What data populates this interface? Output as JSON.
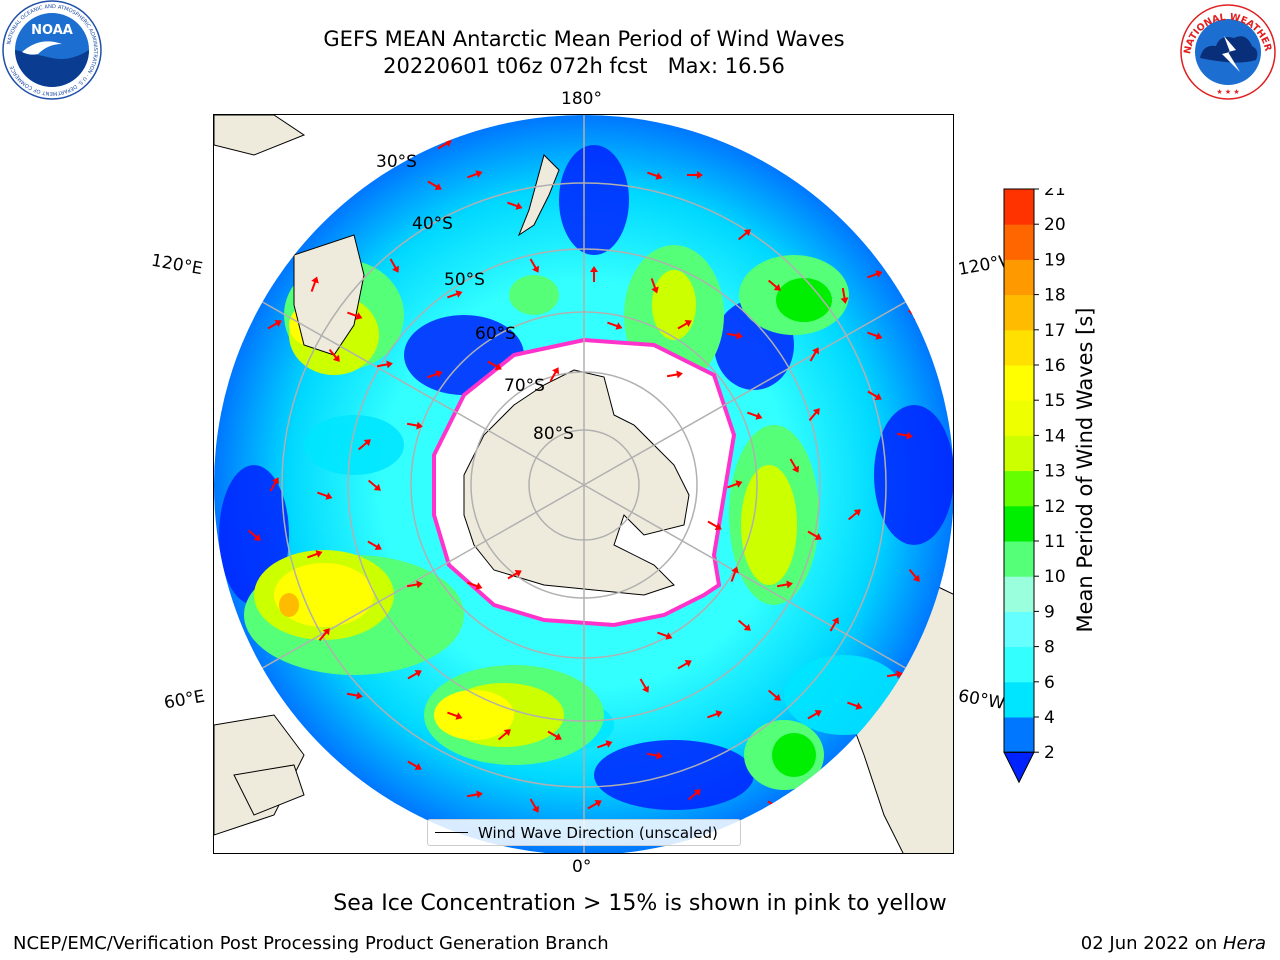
{
  "title": {
    "line1": "GEFS MEAN Antarctic Mean Period of Wind Waves",
    "line2": "20220601 t06z 072h fcst   Max: 16.56"
  },
  "logos": {
    "left": "NOAA",
    "left_ring": "NATIONAL OCEANIC AND ATMOSPHERIC ADMINISTRATION · U.S. DEPARTMENT OF COMMERCE",
    "right": "NATIONAL WEATHER SERVICE"
  },
  "map": {
    "projection": "south-polar-stereographic",
    "longitude_labels": {
      "top": "180°",
      "bottom": "0°",
      "upper_left": "120°E",
      "upper_right": "120°W",
      "lower_left": "60°E",
      "lower_right": "60°W"
    },
    "latitude_labels": [
      "30°S",
      "40°S",
      "50°S",
      "60°S",
      "70°S",
      "80°S"
    ],
    "legend_label": "Wind Wave Direction (unscaled)",
    "colors": {
      "land": "#efebdc",
      "sea_ice": "#ffffff",
      "ice_edge": "#ff33cc",
      "grid": "#b0b0b0",
      "arrow": "#ff0000"
    }
  },
  "colorbar": {
    "label": "Mean Period of Wind Waves [s]",
    "ticks": [
      "2",
      "4",
      "6",
      "8",
      "9",
      "10",
      "11",
      "12",
      "13",
      "14",
      "15",
      "16",
      "17",
      "18",
      "19",
      "20",
      "21"
    ],
    "colors": [
      "#0077ff",
      "#00e5ff",
      "#33ffff",
      "#66ffff",
      "#99ffdd",
      "#55ff77",
      "#00ee00",
      "#66ff00",
      "#ccff00",
      "#eeff00",
      "#ffff00",
      "#ffe000",
      "#ffbb00",
      "#ff9900",
      "#ff6600",
      "#ff3300"
    ],
    "extend_color": "#0022ff"
  },
  "subtitle": "Sea Ice Concentration > 15% is shown in pink to yellow",
  "footer": {
    "left": "NCEP/EMC/Verification Post Processing Product Generation Branch",
    "right_date": "02 Jun 2022 on ",
    "right_host": "Hera"
  }
}
